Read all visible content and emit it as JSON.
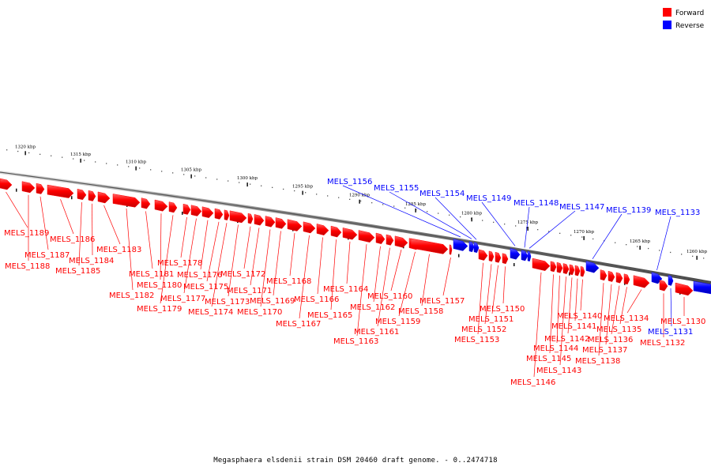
{
  "legend": {
    "forward": {
      "label": "Forward",
      "color": "#ff0000"
    },
    "reverse": {
      "label": "Reverse",
      "color": "#0000ff"
    }
  },
  "caption": "Megasphaera elsdenii strain DSM 20460 draft genome. - 0..2474718",
  "scale_labels": [
    "1320 kbp",
    "1315 kbp",
    "1310 kbp",
    "1305 kbp",
    "1300 kbp",
    "1295 kbp",
    "1290 kbp",
    "1285 kbp",
    "1280 kbp",
    "1275 kbp",
    "1270 kbp",
    "1265 kbp",
    "1260 kbp"
  ],
  "genes": [
    {
      "name": "MELS_1189",
      "strand": "forward"
    },
    {
      "name": "MELS_1188",
      "strand": "forward"
    },
    {
      "name": "MELS_1187",
      "strand": "forward"
    },
    {
      "name": "MELS_1186",
      "strand": "forward"
    },
    {
      "name": "MELS_1185",
      "strand": "forward"
    },
    {
      "name": "MELS_1184",
      "strand": "forward"
    },
    {
      "name": "MELS_1183",
      "strand": "forward"
    },
    {
      "name": "MELS_1182",
      "strand": "forward"
    },
    {
      "name": "MELS_1181",
      "strand": "forward"
    },
    {
      "name": "MELS_1180",
      "strand": "forward"
    },
    {
      "name": "MELS_1179",
      "strand": "forward"
    },
    {
      "name": "MELS_1178",
      "strand": "forward"
    },
    {
      "name": "MELS_1177",
      "strand": "forward"
    },
    {
      "name": "MELS_1176",
      "strand": "forward"
    },
    {
      "name": "MELS_1175",
      "strand": "forward"
    },
    {
      "name": "MELS_1174",
      "strand": "forward"
    },
    {
      "name": "MELS_1173",
      "strand": "forward"
    },
    {
      "name": "MELS_1172",
      "strand": "forward"
    },
    {
      "name": "MELS_1171",
      "strand": "forward"
    },
    {
      "name": "MELS_1170",
      "strand": "forward"
    },
    {
      "name": "MELS_1169",
      "strand": "forward"
    },
    {
      "name": "MELS_1168",
      "strand": "forward"
    },
    {
      "name": "MELS_1167",
      "strand": "forward"
    },
    {
      "name": "MELS_1166",
      "strand": "forward"
    },
    {
      "name": "MELS_1165",
      "strand": "forward"
    },
    {
      "name": "MELS_1164",
      "strand": "forward"
    },
    {
      "name": "MELS_1163",
      "strand": "forward"
    },
    {
      "name": "MELS_1162",
      "strand": "forward"
    },
    {
      "name": "MELS_1161",
      "strand": "forward"
    },
    {
      "name": "MELS_1160",
      "strand": "forward"
    },
    {
      "name": "MELS_1159",
      "strand": "forward"
    },
    {
      "name": "MELS_1158",
      "strand": "forward"
    },
    {
      "name": "MELS_1157",
      "strand": "forward"
    },
    {
      "name": "MELS_1156",
      "strand": "reverse"
    },
    {
      "name": "MELS_1155",
      "strand": "reverse"
    },
    {
      "name": "MELS_1154",
      "strand": "reverse"
    },
    {
      "name": "MELS_1153",
      "strand": "forward"
    },
    {
      "name": "MELS_1152",
      "strand": "forward"
    },
    {
      "name": "MELS_1151",
      "strand": "forward"
    },
    {
      "name": "MELS_1150",
      "strand": "forward"
    },
    {
      "name": "MELS_1149",
      "strand": "reverse"
    },
    {
      "name": "MELS_1148",
      "strand": "reverse"
    },
    {
      "name": "MELS_1147",
      "strand": "reverse"
    },
    {
      "name": "MELS_1146",
      "strand": "forward"
    },
    {
      "name": "MELS_1145",
      "strand": "forward"
    },
    {
      "name": "MELS_1144",
      "strand": "forward"
    },
    {
      "name": "MELS_1143",
      "strand": "forward"
    },
    {
      "name": "MELS_1142",
      "strand": "forward"
    },
    {
      "name": "MELS_1141",
      "strand": "forward"
    },
    {
      "name": "MELS_1140",
      "strand": "forward"
    },
    {
      "name": "MELS_1139",
      "strand": "reverse"
    },
    {
      "name": "MELS_1138",
      "strand": "forward"
    },
    {
      "name": "MELS_1137",
      "strand": "forward"
    },
    {
      "name": "MELS_1136",
      "strand": "forward"
    },
    {
      "name": "MELS_1135",
      "strand": "forward"
    },
    {
      "name": "MELS_1134",
      "strand": "forward"
    },
    {
      "name": "MELS_1133",
      "strand": "reverse"
    },
    {
      "name": "MELS_1132",
      "strand": "forward"
    },
    {
      "name": "MELS_1131",
      "strand": "reverse"
    },
    {
      "name": "MELS_1130",
      "strand": "forward"
    }
  ]
}
